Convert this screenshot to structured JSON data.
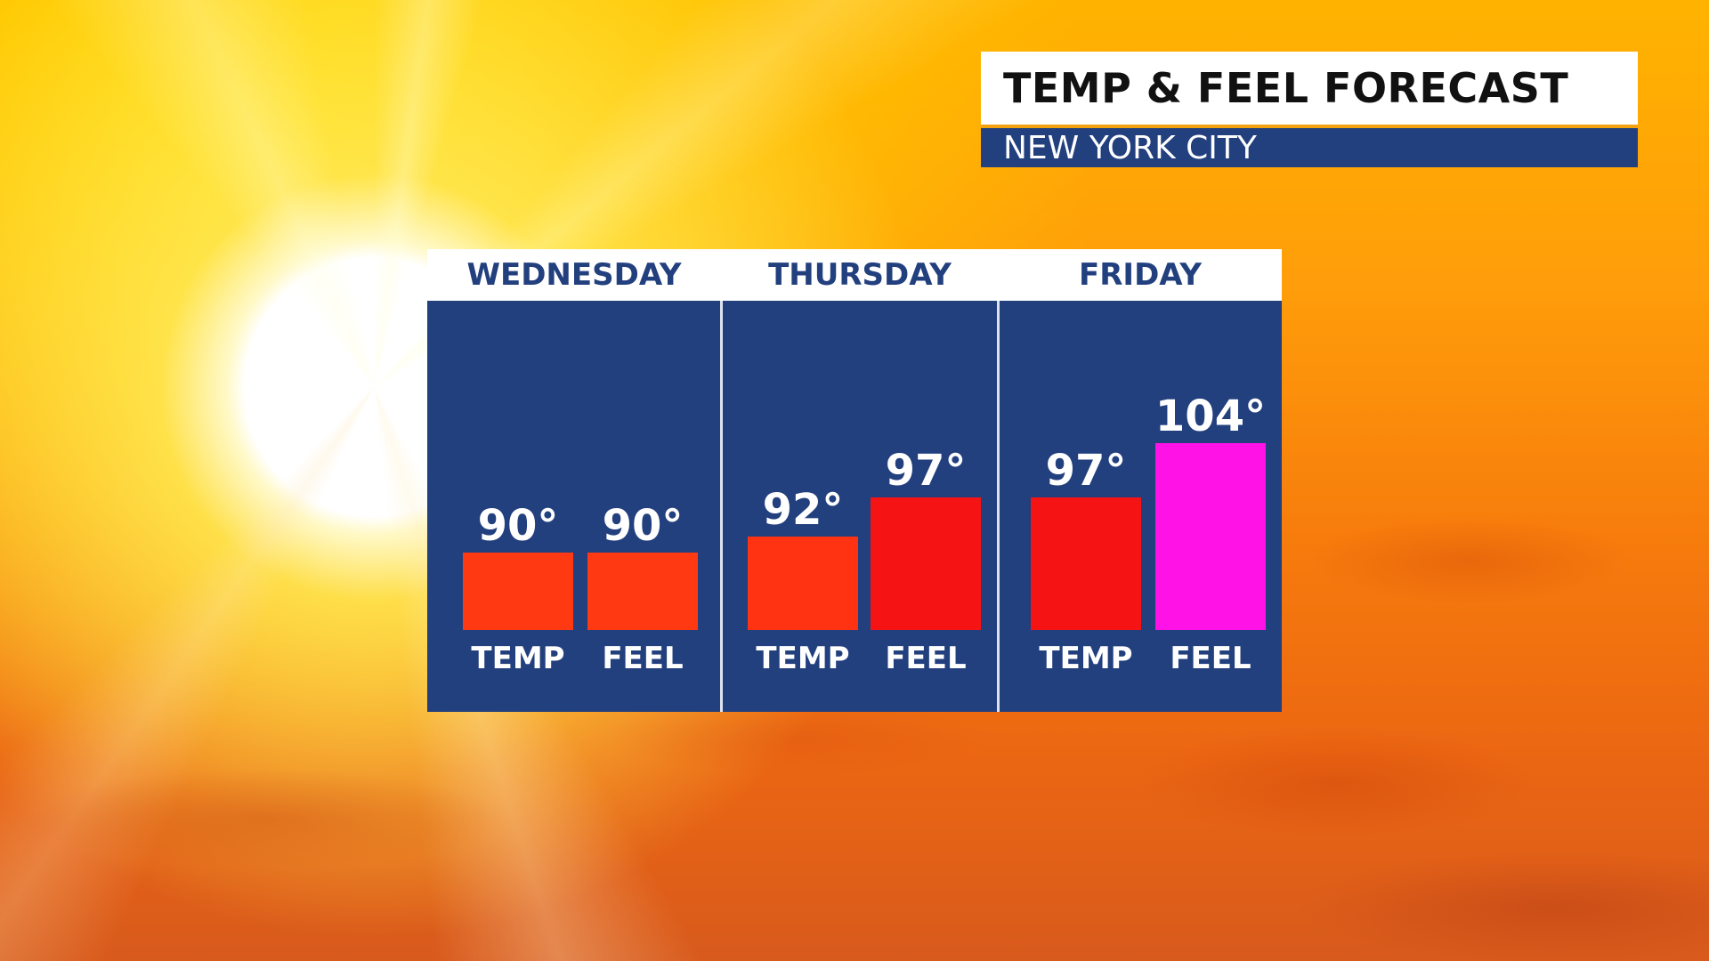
{
  "header": {
    "title": "TEMP & FEEL FORECAST",
    "location": "NEW YORK CITY"
  },
  "colors": {
    "panel": "#223f7e",
    "header_bg": "#ffffff",
    "accent": "#f2a20f",
    "bar_90": "#ff3a12",
    "bar_92": "#ff3311",
    "bar_97": "#f51314",
    "bar_104": "#ff12e6"
  },
  "chart_data": {
    "type": "bar",
    "categories": [
      "WEDNESDAY",
      "THURSDAY",
      "FRIDAY"
    ],
    "bar_labels": [
      "TEMP",
      "FEEL"
    ],
    "unit": "°",
    "ylim": [
      80,
      106
    ],
    "days": [
      {
        "day": "WEDNESDAY",
        "temp": 90,
        "feel": 90,
        "temp_text": "90°",
        "feel_text": "90°",
        "temp_color": "#ff3a12",
        "feel_color": "#ff3a12"
      },
      {
        "day": "THURSDAY",
        "temp": 92,
        "feel": 97,
        "temp_text": "92°",
        "feel_text": "97°",
        "temp_color": "#ff3311",
        "feel_color": "#f51314"
      },
      {
        "day": "FRIDAY",
        "temp": 97,
        "feel": 104,
        "temp_text": "97°",
        "feel_text": "104°",
        "temp_color": "#f51314",
        "feel_color": "#ff12e6"
      }
    ]
  }
}
